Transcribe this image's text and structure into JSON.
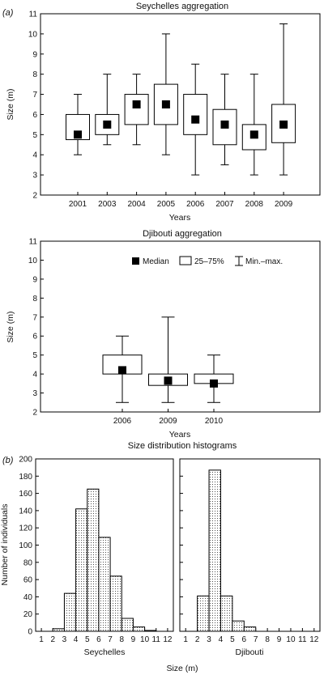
{
  "figure": {
    "subtitle": "Size distribution histograms",
    "xlabel": "Size (m)"
  },
  "legend": {
    "items": [
      {
        "symbol": "square",
        "label": "Median"
      },
      {
        "symbol": "box",
        "label": "25–75%"
      },
      {
        "symbol": "whisker",
        "label": "Min.–max."
      }
    ]
  },
  "chart_data": [
    {
      "type": "boxplot",
      "panel": "(a)",
      "title": "Seychelles aggregation",
      "xlabel": "Years",
      "ylabel": "Size (m)",
      "ylim": [
        2,
        11
      ],
      "yticks": [
        2,
        3,
        4,
        5,
        6,
        7,
        8,
        9,
        10,
        11
      ],
      "categories": [
        "2001",
        "2003",
        "2004",
        "2005",
        "2006",
        "2007",
        "2008",
        "2009"
      ],
      "median": [
        5.0,
        5.5,
        6.5,
        6.5,
        5.75,
        5.5,
        5.0,
        5.5
      ],
      "q1": [
        4.75,
        5.0,
        5.5,
        5.5,
        5.0,
        4.5,
        4.25,
        4.6
      ],
      "q3": [
        6.0,
        6.0,
        7.0,
        7.5,
        7.0,
        6.25,
        5.5,
        6.5
      ],
      "min": [
        4.0,
        4.5,
        4.5,
        4.0,
        3.0,
        3.5,
        3.0,
        3.0
      ],
      "max": [
        7.0,
        8.0,
        8.0,
        10.0,
        8.5,
        8.0,
        8.0,
        10.5
      ],
      "legend": "none"
    },
    {
      "type": "boxplot",
      "title": "Djibouti aggregation",
      "xlabel": "Years",
      "ylabel": "Size (m)",
      "ylim": [
        2,
        11
      ],
      "yticks": [
        2,
        3,
        4,
        5,
        6,
        7,
        8,
        9,
        10,
        11
      ],
      "categories": [
        "2006",
        "2009",
        "2010"
      ],
      "median": [
        4.2,
        3.65,
        3.5
      ],
      "q1": [
        4.0,
        3.4,
        3.5
      ],
      "q3": [
        5.0,
        4.0,
        4.0
      ],
      "min": [
        2.5,
        2.5,
        2.5
      ],
      "max": [
        6.0,
        7.0,
        5.0
      ],
      "legend": "top-right"
    },
    {
      "type": "bar",
      "panel": "(b)",
      "xlabel": "Seychelles",
      "ylabel": "Number of individuals",
      "ylim": [
        0,
        200
      ],
      "yticks": [
        0,
        20,
        40,
        60,
        80,
        100,
        120,
        140,
        160,
        180,
        200
      ],
      "x": [
        2.5,
        3.5,
        4.5,
        5.5,
        6.5,
        7.5,
        8.5,
        9.5,
        10.5
      ],
      "values": [
        3,
        44,
        142,
        165,
        109,
        64,
        15,
        5,
        1
      ],
      "xlim": [
        0.5,
        12.5
      ],
      "xticks": [
        1,
        2,
        3,
        4,
        5,
        6,
        7,
        8,
        9,
        10,
        11,
        12
      ]
    },
    {
      "type": "bar",
      "xlabel": "Djibouti",
      "ylim": [
        0,
        200
      ],
      "x": [
        2.5,
        3.5,
        4.5,
        5.5,
        6.5
      ],
      "values": [
        41,
        187,
        41,
        12,
        5
      ],
      "xlim": [
        0.5,
        12.5
      ],
      "xticks": [
        1,
        2,
        3,
        4,
        5,
        6,
        7,
        8,
        9,
        10,
        11,
        12
      ]
    }
  ]
}
